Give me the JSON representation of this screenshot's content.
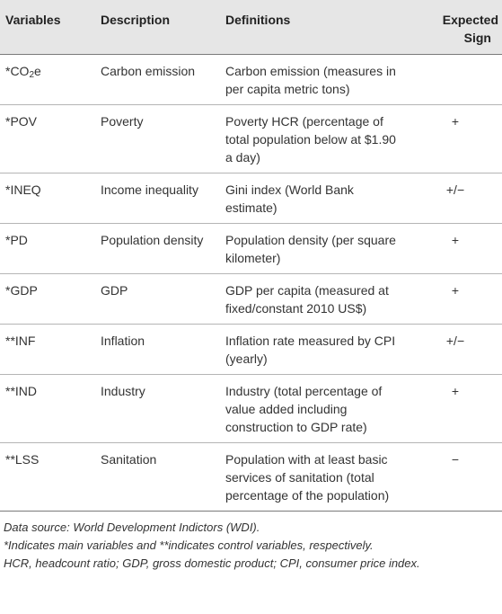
{
  "table": {
    "headers": {
      "variables": "Variables",
      "description": "Description",
      "definitions": "Definitions",
      "sign_line1": "Expected",
      "sign_line2": "Sign"
    },
    "rows": [
      {
        "var_prefix": "*CO",
        "var_sub": "2",
        "var_suffix": "e",
        "desc": "Carbon emission",
        "def": "Carbon emission (measures in per capita metric tons)",
        "sign": ""
      },
      {
        "var_prefix": "*POV",
        "var_sub": "",
        "var_suffix": "",
        "desc": "Poverty",
        "def": "Poverty HCR (percentage of total population below at $1.90 a day)",
        "sign": "+"
      },
      {
        "var_prefix": "*INEQ",
        "var_sub": "",
        "var_suffix": "",
        "desc": "Income inequality",
        "def": "Gini index (World Bank estimate)",
        "sign": "+/−"
      },
      {
        "var_prefix": "*PD",
        "var_sub": "",
        "var_suffix": "",
        "desc": "Population density",
        "def": "Population density (per square kilometer)",
        "sign": "+"
      },
      {
        "var_prefix": "*GDP",
        "var_sub": "",
        "var_suffix": "",
        "desc": "GDP",
        "def": "GDP per capita (measured at fixed/constant 2010 US$)",
        "sign": "+"
      },
      {
        "var_prefix": "**INF",
        "var_sub": "",
        "var_suffix": "",
        "desc": "Inflation",
        "def": "Inflation rate measured by CPI (yearly)",
        "sign": "+/−"
      },
      {
        "var_prefix": "**IND",
        "var_sub": "",
        "var_suffix": "",
        "desc": "Industry",
        "def": "Industry (total percentage of value added including construction to GDP rate)",
        "sign": "+"
      },
      {
        "var_prefix": "**LSS",
        "var_sub": "",
        "var_suffix": "",
        "desc": "Sanitation",
        "def": "Population with at least basic services of sanitation (total percentage of the population)",
        "sign": "−"
      }
    ]
  },
  "notes": {
    "source": "Data source: World Development Indictors (WDI).",
    "indicates": "*Indicates main variables and **indicates control variables, respectively.",
    "abbreviations": "HCR, headcount ratio; GDP, gross domestic product; CPI, consumer price index."
  }
}
